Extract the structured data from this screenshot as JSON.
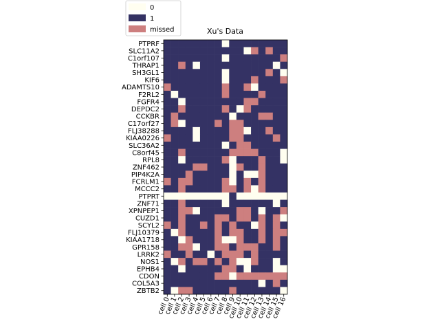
{
  "chart_data": {
    "type": "heatmap",
    "title": "Xu's Data",
    "xlabel": "",
    "ylabel": "",
    "colors": {
      "0": "#fffef0",
      "1": "#343264",
      "missed": "#cd7f7f"
    },
    "legend": {
      "placement": "top-left, outside plot",
      "entries": [
        {
          "key": "0",
          "label": "0"
        },
        {
          "key": "1",
          "label": "1"
        },
        {
          "key": "missed",
          "label": "missed"
        }
      ]
    },
    "columns": [
      "cell 0",
      "cell 1",
      "cell 2",
      "cell 3",
      "cell 4",
      "cell 5",
      "cell 6",
      "cell 7",
      "cell 8",
      "cell 9",
      "cell 10",
      "cell 11",
      "cell 12",
      "cell 13",
      "cell 14",
      "cell 15",
      "cell 16"
    ],
    "rows": [
      "PTPRF",
      "SLC11A2",
      "C1orf107",
      "THRAP1",
      "SH3GL1",
      "KIF6",
      "ADAMTS10",
      "F2RL2",
      "FGFR4",
      "DEPDC2",
      "CCKBR",
      "C17orf27",
      "FLJ38288",
      "KIAA0226",
      "SLC36A2",
      "C8orf45",
      "RPL8",
      "ZNF462",
      "PIP4K2A",
      "FCRLM1",
      "MCCC2",
      "PTPRT",
      "ZNF71",
      "XPNPEP1",
      "CUZD1",
      "SCYL2",
      "FLJ10379",
      "KIAA1718",
      "GPR158",
      "LRRK2",
      "NOS1",
      "EPHB4",
      "CDON",
      "COL5A3",
      "ZBTB2"
    ],
    "value_codes": {
      "0": "0",
      "1": "1",
      "2": "missed"
    },
    "matrix": [
      [
        1,
        1,
        1,
        1,
        1,
        1,
        1,
        1,
        0,
        1,
        1,
        1,
        1,
        1,
        1,
        1,
        1
      ],
      [
        1,
        1,
        1,
        1,
        1,
        1,
        1,
        1,
        1,
        1,
        1,
        0,
        2,
        1,
        2,
        1,
        1
      ],
      [
        1,
        1,
        1,
        1,
        1,
        1,
        1,
        1,
        0,
        1,
        1,
        1,
        1,
        1,
        1,
        1,
        2
      ],
      [
        1,
        1,
        2,
        1,
        0,
        1,
        1,
        1,
        1,
        1,
        1,
        1,
        1,
        1,
        1,
        0,
        1
      ],
      [
        1,
        1,
        1,
        1,
        1,
        1,
        1,
        1,
        0,
        1,
        1,
        1,
        1,
        1,
        2,
        1,
        0
      ],
      [
        1,
        1,
        1,
        1,
        1,
        1,
        1,
        1,
        0,
        1,
        1,
        1,
        2,
        1,
        1,
        1,
        2
      ],
      [
        2,
        1,
        1,
        1,
        1,
        1,
        1,
        1,
        2,
        1,
        1,
        2,
        0,
        1,
        1,
        1,
        1
      ],
      [
        1,
        0,
        1,
        1,
        1,
        1,
        1,
        1,
        2,
        1,
        1,
        1,
        1,
        2,
        1,
        1,
        1
      ],
      [
        1,
        1,
        0,
        1,
        1,
        1,
        1,
        1,
        1,
        1,
        1,
        2,
        2,
        1,
        1,
        1,
        1
      ],
      [
        1,
        1,
        2,
        1,
        1,
        1,
        1,
        1,
        2,
        1,
        0,
        2,
        1,
        1,
        1,
        1,
        1
      ],
      [
        1,
        2,
        1,
        1,
        1,
        1,
        1,
        1,
        1,
        0,
        1,
        1,
        1,
        2,
        2,
        1,
        1
      ],
      [
        1,
        2,
        0,
        1,
        1,
        1,
        1,
        2,
        1,
        2,
        2,
        1,
        1,
        1,
        1,
        1,
        1
      ],
      [
        1,
        1,
        1,
        1,
        0,
        1,
        1,
        1,
        1,
        2,
        2,
        0,
        1,
        1,
        2,
        1,
        1
      ],
      [
        2,
        1,
        1,
        1,
        0,
        1,
        1,
        1,
        1,
        2,
        2,
        1,
        1,
        1,
        1,
        2,
        1
      ],
      [
        1,
        1,
        1,
        1,
        1,
        1,
        1,
        1,
        0,
        1,
        2,
        2,
        1,
        1,
        1,
        1,
        1
      ],
      [
        1,
        1,
        2,
        1,
        1,
        1,
        1,
        1,
        1,
        2,
        2,
        2,
        2,
        1,
        1,
        1,
        0
      ],
      [
        1,
        1,
        0,
        1,
        1,
        1,
        1,
        1,
        2,
        0,
        1,
        1,
        1,
        2,
        1,
        1,
        0
      ],
      [
        1,
        1,
        1,
        1,
        2,
        2,
        1,
        1,
        1,
        0,
        2,
        1,
        1,
        2,
        1,
        1,
        1
      ],
      [
        1,
        1,
        1,
        2,
        1,
        1,
        1,
        1,
        1,
        0,
        1,
        0,
        0,
        2,
        1,
        1,
        1
      ],
      [
        2,
        1,
        2,
        2,
        1,
        1,
        1,
        1,
        2,
        0,
        1,
        2,
        1,
        2,
        1,
        1,
        1
      ],
      [
        1,
        1,
        2,
        1,
        1,
        1,
        1,
        1,
        2,
        2,
        1,
        2,
        0,
        2,
        1,
        1,
        1
      ],
      [
        0,
        0,
        0,
        0,
        0,
        0,
        0,
        0,
        0,
        1,
        0,
        0,
        0,
        0,
        0,
        0,
        0
      ],
      [
        1,
        1,
        2,
        1,
        1,
        1,
        1,
        1,
        0,
        1,
        1,
        1,
        1,
        1,
        1,
        0,
        1
      ],
      [
        1,
        1,
        2,
        2,
        0,
        1,
        1,
        1,
        1,
        1,
        2,
        2,
        1,
        0,
        1,
        1,
        2
      ],
      [
        1,
        1,
        2,
        1,
        1,
        1,
        1,
        2,
        2,
        1,
        2,
        2,
        1,
        2,
        1,
        2,
        0
      ],
      [
        2,
        1,
        2,
        1,
        1,
        2,
        1,
        2,
        1,
        2,
        1,
        1,
        0,
        2,
        1,
        2,
        1
      ],
      [
        1,
        0,
        2,
        1,
        1,
        1,
        1,
        2,
        1,
        2,
        2,
        1,
        1,
        2,
        1,
        2,
        2
      ],
      [
        1,
        1,
        0,
        2,
        1,
        1,
        1,
        2,
        0,
        0,
        2,
        1,
        1,
        2,
        1,
        2,
        1
      ],
      [
        1,
        1,
        2,
        2,
        0,
        1,
        1,
        2,
        2,
        1,
        2,
        2,
        2,
        1,
        1,
        2,
        1
      ],
      [
        2,
        1,
        1,
        2,
        1,
        1,
        0,
        1,
        2,
        2,
        2,
        1,
        2,
        1,
        1,
        1,
        1
      ],
      [
        1,
        0,
        2,
        1,
        2,
        2,
        1,
        2,
        1,
        2,
        0,
        0,
        2,
        1,
        1,
        0,
        1
      ],
      [
        1,
        1,
        0,
        1,
        1,
        1,
        1,
        1,
        2,
        2,
        1,
        0,
        1,
        1,
        1,
        0,
        0
      ],
      [
        1,
        1,
        1,
        1,
        1,
        1,
        1,
        2,
        2,
        0,
        2,
        2,
        2,
        2,
        2,
        2,
        2
      ],
      [
        1,
        1,
        1,
        1,
        1,
        1,
        1,
        1,
        1,
        1,
        1,
        1,
        1,
        0,
        1,
        2,
        1
      ],
      [
        1,
        0,
        2,
        2,
        1,
        1,
        1,
        1,
        1,
        2,
        1,
        1,
        1,
        1,
        1,
        1,
        0
      ]
    ]
  }
}
